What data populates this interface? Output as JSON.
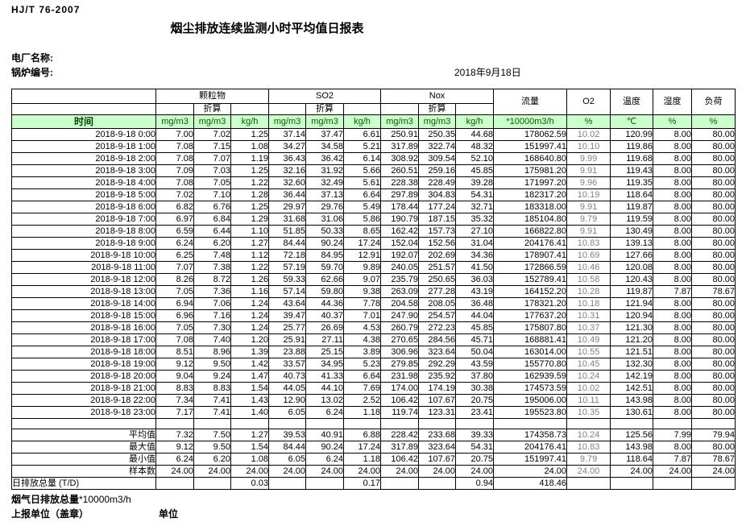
{
  "page": {
    "standard": "HJ/T 76-2007",
    "title": "烟尘排放连续监测小时平均值日报表",
    "plant_name_label": "电厂名称:",
    "boiler_no_label": "锅炉编号:",
    "date": "2018年9月18日"
  },
  "colors": {
    "unit_row_bg": "#ccffcc",
    "unit_row_text": "#006100",
    "o2_value_text": "#808080",
    "grid_border": "#000000"
  },
  "table": {
    "header": {
      "time": "时间",
      "particulate": "颗粒物",
      "so2": "SO2",
      "nox": "Nox",
      "converted": "折算",
      "flow": "流量",
      "o2": "O2",
      "temperature": "温度",
      "humidity": "湿度",
      "load": "负荷",
      "unit_mg": "mg/m3",
      "unit_kgh": "kg/h",
      "unit_flow": "*10000m3/h",
      "unit_pct": "%",
      "unit_c": "℃"
    },
    "rows": [
      {
        "time": "2018-9-18 0:00",
        "v": [
          "7.00",
          "7.02",
          "1.25",
          "37.14",
          "37.47",
          "6.61",
          "250.91",
          "250.35",
          "44.68",
          "178062.59",
          "10.02",
          "120.99",
          "8.00",
          "80.00"
        ]
      },
      {
        "time": "2018-9-18 1:00",
        "v": [
          "7.08",
          "7.15",
          "1.08",
          "34.27",
          "34.58",
          "5.21",
          "317.89",
          "322.74",
          "48.32",
          "151997.41",
          "10.10",
          "119.86",
          "8.00",
          "80.00"
        ]
      },
      {
        "time": "2018-9-18 2:00",
        "v": [
          "7.08",
          "7.07",
          "1.19",
          "36.43",
          "36.42",
          "6.14",
          "308.92",
          "309.54",
          "52.10",
          "168640.80",
          "9.99",
          "119.68",
          "8.00",
          "80.00"
        ]
      },
      {
        "time": "2018-9-18 3:00",
        "v": [
          "7.09",
          "7.03",
          "1.25",
          "32.16",
          "31.92",
          "5.66",
          "260.51",
          "259.16",
          "45.85",
          "175981.20",
          "9.91",
          "119.43",
          "8.00",
          "80.00"
        ]
      },
      {
        "time": "2018-9-18 4:00",
        "v": [
          "7.08",
          "7.05",
          "1.22",
          "32.60",
          "32.49",
          "5.61",
          "228.38",
          "228.49",
          "39.28",
          "171997.20",
          "9.96",
          "119.35",
          "8.00",
          "80.00"
        ]
      },
      {
        "time": "2018-9-18 5:00",
        "v": [
          "7.02",
          "7.10",
          "1.28",
          "36.44",
          "37.13",
          "6.64",
          "297.89",
          "304.83",
          "54.31",
          "182317.20",
          "10.19",
          "118.64",
          "8.00",
          "80.00"
        ]
      },
      {
        "time": "2018-9-18 6:00",
        "v": [
          "6.82",
          "6.76",
          "1.25",
          "29.97",
          "29.76",
          "5.49",
          "178.44",
          "177.24",
          "32.71",
          "183318.00",
          "9.91",
          "119.87",
          "8.00",
          "80.00"
        ]
      },
      {
        "time": "2018-9-18 7:00",
        "v": [
          "6.97",
          "6.84",
          "1.29",
          "31.68",
          "31.06",
          "5.86",
          "190.79",
          "187.15",
          "35.32",
          "185104.80",
          "9.79",
          "119.59",
          "8.00",
          "80.00"
        ]
      },
      {
        "time": "2018-9-18 8:00",
        "v": [
          "6.59",
          "6.44",
          "1.10",
          "51.85",
          "50.33",
          "8.65",
          "162.42",
          "157.73",
          "27.10",
          "166822.80",
          "9.91",
          "130.49",
          "8.00",
          "80.00"
        ]
      },
      {
        "time": "2018-9-18 9:00",
        "v": [
          "6.24",
          "6.20",
          "1.27",
          "84.44",
          "90.24",
          "17.24",
          "152.04",
          "152.56",
          "31.04",
          "204176.41",
          "10.83",
          "139.13",
          "8.00",
          "80.00"
        ]
      },
      {
        "time": "2018-9-18 10:00",
        "v": [
          "6.25",
          "7.48",
          "1.12",
          "72.18",
          "84.95",
          "12.91",
          "192.07",
          "202.69",
          "34.36",
          "178907.41",
          "10.69",
          "127.66",
          "8.00",
          "80.00"
        ]
      },
      {
        "time": "2018-9-18 11:00",
        "v": [
          "7.07",
          "7.38",
          "1.22",
          "57.19",
          "59.70",
          "9.89",
          "240.05",
          "251.57",
          "41.50",
          "172866.59",
          "10.46",
          "120.08",
          "8.00",
          "80.00"
        ]
      },
      {
        "time": "2018-9-18 12:00",
        "v": [
          "8.26",
          "8.72",
          "1.26",
          "59.33",
          "62.66",
          "9.07",
          "235.79",
          "250.65",
          "36.03",
          "152789.41",
          "10.58",
          "120.43",
          "8.00",
          "80.00"
        ]
      },
      {
        "time": "2018-9-18 13:00",
        "v": [
          "7.05",
          "7.36",
          "1.16",
          "57.14",
          "59.80",
          "9.38",
          "263.09",
          "277.28",
          "43.19",
          "164152.20",
          "10.28",
          "119.87",
          "7.87",
          "78.67"
        ]
      },
      {
        "time": "2018-9-18 14:00",
        "v": [
          "6.94",
          "7.06",
          "1.24",
          "43.64",
          "44.36",
          "7.78",
          "204.58",
          "208.05",
          "36.48",
          "178321.20",
          "10.18",
          "121.94",
          "8.00",
          "80.00"
        ]
      },
      {
        "time": "2018-9-18 15:00",
        "v": [
          "6.96",
          "7.16",
          "1.24",
          "39.47",
          "40.37",
          "7.01",
          "247.90",
          "254.57",
          "44.04",
          "177637.20",
          "10.31",
          "120.94",
          "8.00",
          "80.00"
        ]
      },
      {
        "time": "2018-9-18 16:00",
        "v": [
          "7.05",
          "7.30",
          "1.24",
          "25.77",
          "26.69",
          "4.53",
          "260.79",
          "272.23",
          "45.85",
          "175807.80",
          "10.37",
          "121.30",
          "8.00",
          "80.00"
        ]
      },
      {
        "time": "2018-9-18 17:00",
        "v": [
          "7.08",
          "7.40",
          "1.20",
          "25.91",
          "27.11",
          "4.38",
          "270.65",
          "284.56",
          "45.71",
          "168881.41",
          "10.49",
          "121.20",
          "8.00",
          "80.00"
        ]
      },
      {
        "time": "2018-9-18 18:00",
        "v": [
          "8.51",
          "8.96",
          "1.39",
          "23.88",
          "25.15",
          "3.89",
          "306.96",
          "323.64",
          "50.04",
          "163014.00",
          "10.55",
          "121.51",
          "8.00",
          "80.00"
        ]
      },
      {
        "time": "2018-9-18 19:00",
        "v": [
          "9.12",
          "9.50",
          "1.42",
          "33.57",
          "34.95",
          "5.23",
          "279.85",
          "292.29",
          "43.59",
          "155770.80",
          "10.45",
          "132.30",
          "8.00",
          "80.00"
        ]
      },
      {
        "time": "2018-9-18 20:00",
        "v": [
          "9.04",
          "9.24",
          "1.47",
          "40.73",
          "41.33",
          "6.64",
          "231.98",
          "235.92",
          "37.80",
          "162939.59",
          "10.24",
          "142.19",
          "8.00",
          "80.00"
        ]
      },
      {
        "time": "2018-9-18 21:00",
        "v": [
          "8.83",
          "8.83",
          "1.54",
          "44.05",
          "44.10",
          "7.69",
          "174.00",
          "174.19",
          "30.38",
          "174573.59",
          "10.02",
          "142.51",
          "8.00",
          "80.00"
        ]
      },
      {
        "time": "2018-9-18 22:00",
        "v": [
          "7.34",
          "7.41",
          "1.43",
          "12.90",
          "13.02",
          "2.52",
          "106.42",
          "107.67",
          "20.75",
          "195006.00",
          "10.11",
          "143.98",
          "8.00",
          "80.00"
        ]
      },
      {
        "time": "2018-9-18 23:00",
        "v": [
          "7.17",
          "7.41",
          "1.40",
          "6.05",
          "6.24",
          "1.18",
          "119.74",
          "123.31",
          "23.41",
          "195523.80",
          "10.35",
          "130.61",
          "8.00",
          "80.00"
        ]
      }
    ],
    "summary": [
      {
        "label": "平均值",
        "v": [
          "7.32",
          "7.50",
          "1.27",
          "39.53",
          "40.91",
          "6.88",
          "228.42",
          "233.68",
          "39.33",
          "174358.73",
          "10.24",
          "125.56",
          "7.99",
          "79.94"
        ]
      },
      {
        "label": "最大值",
        "v": [
          "9.12",
          "9.50",
          "1.54",
          "84.44",
          "90.24",
          "17.24",
          "317.89",
          "323.64",
          "54.31",
          "204176.41",
          "10.83",
          "143.98",
          "8.00",
          "80.00"
        ]
      },
      {
        "label": "最小值",
        "v": [
          "6.24",
          "6.20",
          "1.08",
          "6.05",
          "6.24",
          "1.18",
          "106.42",
          "107.67",
          "20.75",
          "151997.41",
          "9.79",
          "118.64",
          "7.87",
          "78.67"
        ]
      },
      {
        "label": "样本数",
        "v": [
          "24.00",
          "24.00",
          "24.00",
          "24.00",
          "24.00",
          "24.00",
          "24.00",
          "24.00",
          "24.00",
          "24.00",
          "24.00",
          "24.00",
          "24.00",
          "24.00"
        ]
      },
      {
        "label": "日排放总量 (T/D)",
        "v": [
          "",
          "",
          "0.03",
          "",
          "",
          "0.17",
          "",
          "",
          "0.94",
          "418.46",
          "",
          "",
          "",
          ""
        ]
      }
    ]
  },
  "footer": {
    "flue_total_label": "烟气日排放总量",
    "flue_total_unit": "*10000m3/h",
    "report_unit_label": "上报单位（盖章）",
    "unit_label": "单位"
  }
}
